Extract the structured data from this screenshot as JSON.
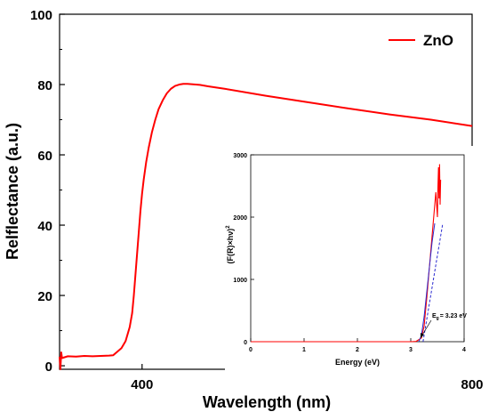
{
  "chart_data": [
    {
      "type": "line",
      "title": "",
      "xlabel": "Wavelength (nm)",
      "ylabel": "Relflectance (a.u.)",
      "xlim": [
        300,
        800
      ],
      "ylim": [
        -1,
        100
      ],
      "xticks": [
        400,
        800
      ],
      "yticks": [
        0,
        20,
        40,
        60,
        80,
        100
      ],
      "legend": {
        "position": "top-right",
        "entries": [
          "ZnO"
        ]
      },
      "colors": {
        "series": "#ff0000"
      },
      "series": [
        {
          "name": "ZnO",
          "x": [
            300,
            301,
            302,
            303,
            310,
            320,
            330,
            340,
            350,
            360,
            365,
            370,
            375,
            380,
            385,
            388,
            390,
            392,
            394,
            396,
            398,
            400,
            402,
            405,
            408,
            412,
            416,
            420,
            425,
            430,
            435,
            440,
            445,
            450,
            455,
            460,
            470,
            480,
            500,
            550,
            600,
            650,
            700,
            750,
            800
          ],
          "y": [
            2.6,
            -1.0,
            3.8,
            2.2,
            2.7,
            2.6,
            2.8,
            2.7,
            2.8,
            2.9,
            3.0,
            4.0,
            5.0,
            7.0,
            11.0,
            15.0,
            20.0,
            26.0,
            32.0,
            38.0,
            44.0,
            49.0,
            53.0,
            58.0,
            62.0,
            66.5,
            70.0,
            73.0,
            75.5,
            77.5,
            78.8,
            79.6,
            80.0,
            80.2,
            80.2,
            80.1,
            79.9,
            79.5,
            78.8,
            76.8,
            75.0,
            73.2,
            71.5,
            70.0,
            68.2
          ]
        }
      ]
    },
    {
      "type": "line",
      "title": "",
      "xlabel": "Energy (eV)",
      "ylabel": "(F(R)×hν)²",
      "xlim": [
        0,
        4
      ],
      "ylim": [
        0,
        3000
      ],
      "xticks": [
        0,
        1,
        2,
        3,
        4
      ],
      "yticks": [
        0,
        1000,
        2000,
        3000
      ],
      "annotation": "E_g = 3.23 eV",
      "series": [
        {
          "x": [
            0,
            1,
            2,
            3,
            3.1,
            3.2,
            3.25,
            3.3,
            3.35,
            3.4,
            3.45,
            3.47,
            3.5,
            3.51,
            3.52,
            3.53,
            3.54,
            3.55,
            3.56
          ],
          "y": [
            0,
            0,
            0,
            0,
            5,
            60,
            250,
            700,
            1200,
            1700,
            2200,
            2400,
            2000,
            2500,
            2800,
            2300,
            2850,
            2200,
            2600
          ],
          "color": "#ff0000"
        },
        {
          "x": [
            3.15,
            3.2,
            3.25,
            3.3,
            3.35,
            3.4,
            3.45
          ],
          "y": [
            0,
            100,
            400,
            800,
            1200,
            1600,
            1900
          ],
          "color": "#2a2ad0",
          "style": "fit"
        },
        {
          "x": [
            3.23,
            3.6
          ],
          "y": [
            0,
            1900
          ],
          "color": "#2a2ad0",
          "style": "dashed"
        }
      ]
    }
  ],
  "main_chart": {
    "ytick_labels": [
      "0",
      "20",
      "40",
      "60",
      "80",
      "100"
    ],
    "xtick_labels": [
      "400",
      "800"
    ]
  },
  "inset": {
    "ytick_labels": [
      "0",
      "1000",
      "2000",
      "3000"
    ],
    "xtick_labels": [
      "0",
      "1",
      "2",
      "3",
      "4"
    ],
    "ylabel_main": "(F(R)×hν)",
    "ylabel_sup": "2",
    "eg_prefix": "E",
    "eg_sub": "g",
    "eg_value": "= 3.23 eV"
  }
}
